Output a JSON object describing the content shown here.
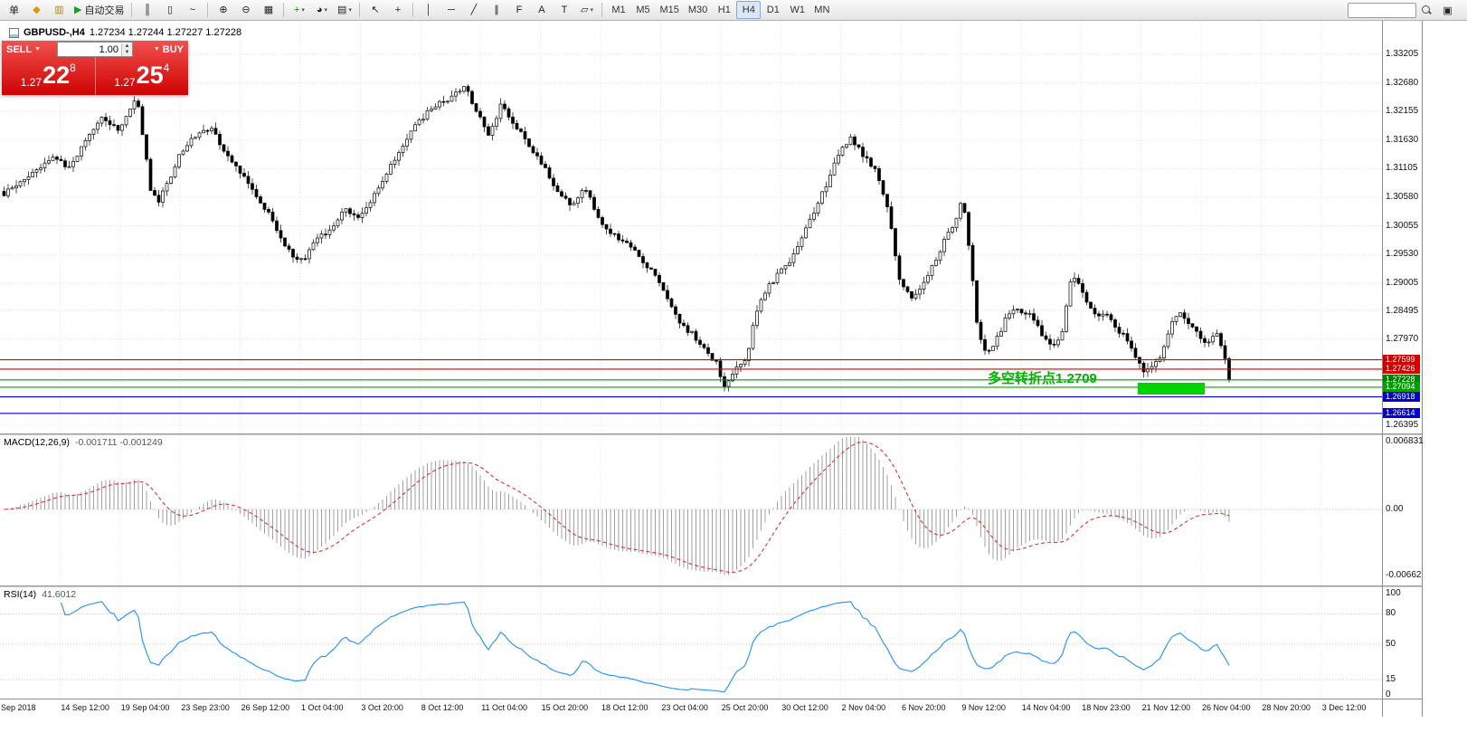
{
  "chart": {
    "symbol": "GBPUSD-,H4",
    "ohlc": "1.27234 1.27244 1.27227 1.27228"
  },
  "toolbar": {
    "buttons": [
      {
        "n": "new-order-button",
        "t": "单"
      },
      {
        "n": "history-center-icon",
        "g": "◆",
        "c": "#d89a00"
      },
      {
        "n": "market-watch-icon",
        "g": "▥",
        "c": "#b8860b"
      },
      {
        "n": "autotrading-button",
        "g": "▶",
        "gc": "#18a018",
        "t": "自动交易"
      },
      {
        "sep": true
      },
      {
        "n": "bar-chart-button",
        "g": "║"
      },
      {
        "n": "candlestick-chart-button",
        "g": "▯"
      },
      {
        "n": "line-chart-button",
        "g": "~"
      },
      {
        "sep": true
      },
      {
        "n": "zoom-in-button",
        "g": "⊕"
      },
      {
        "n": "zoom-out-button",
        "g": "⊖"
      },
      {
        "n": "tile-windows-button",
        "g": "▦"
      },
      {
        "sep": true
      },
      {
        "n": "new-chart-button",
        "g": "+",
        "gc": "#0a8f0a",
        "dd": true
      },
      {
        "n": "profiles-button",
        "g": "◕",
        "dd": true
      },
      {
        "n": "chart-settings-button",
        "g": "▤",
        "dd": true
      },
      {
        "sep": true
      },
      {
        "n": "cursor-tool",
        "g": "↖"
      },
      {
        "n": "crosshair-tool",
        "g": "+"
      },
      {
        "sep": true
      },
      {
        "n": "vertical-line-tool",
        "g": "│"
      },
      {
        "n": "horizontal-line-tool",
        "g": "─"
      },
      {
        "n": "trendline-tool",
        "g": "╱"
      },
      {
        "n": "equidistant-channel-tool",
        "g": "∥"
      },
      {
        "n": "fibonacci-tool",
        "g": "F"
      },
      {
        "n": "text-tool",
        "g": "A"
      },
      {
        "n": "label-tool",
        "g": "T"
      },
      {
        "n": "arrows-button",
        "g": "▱",
        "dd": true
      },
      {
        "sep": true
      }
    ],
    "timeframes": {
      "items": [
        "M1",
        "M5",
        "M15",
        "M30",
        "H1",
        "H4",
        "D1",
        "W1",
        "MN"
      ],
      "active": "H4"
    }
  },
  "trade_panel": {
    "sell_label": "SELL",
    "buy_label": "BUY",
    "volume": "1.00",
    "sell_price": {
      "prefix": "1.27",
      "big": "22",
      "pip": "8"
    },
    "buy_price": {
      "prefix": "1.27",
      "big": "25",
      "pip": "4"
    }
  },
  "annotation": {
    "text": "多空转折点1.2709",
    "color": "#00b400",
    "rect_color": "#00d300"
  },
  "hlines": [
    {
      "price": 1.27599,
      "color": "#e00000"
    },
    {
      "price": 1.27426,
      "color": "#e00000"
    },
    {
      "price": 1.27228,
      "color": "#009a00"
    },
    {
      "price": 1.27094,
      "color": "#00a800"
    },
    {
      "price": 1.26918,
      "color": "#0000cc"
    },
    {
      "price": 1.26614,
      "color": "#0000cc"
    }
  ],
  "price_scale": {
    "ticks": [
      {
        "label": "1.33205",
        "price": 1.33205
      },
      {
        "label": "1.32680",
        "price": 1.3268
      },
      {
        "label": "1.32155",
        "price": 1.32155
      },
      {
        "label": "1.31630",
        "price": 1.3163
      },
      {
        "label": "1.31105",
        "price": 1.31105
      },
      {
        "label": "1.30580",
        "price": 1.3058
      },
      {
        "label": "1.30055",
        "price": 1.30055
      },
      {
        "label": "1.29530",
        "price": 1.2953
      },
      {
        "label": "1.29005",
        "price": 1.29005
      },
      {
        "label": "1.28495",
        "price": 1.28495
      },
      {
        "label": "1.27970",
        "price": 1.2797
      },
      {
        "label": "1.26395",
        "price": 1.26395
      }
    ],
    "tags": [
      {
        "label": "1.27599",
        "price": 1.27599,
        "color": "#d40000"
      },
      {
        "label": "1.27426",
        "price": 1.27426,
        "color": "#d40000"
      },
      {
        "label": "1.27228",
        "price": 1.27228,
        "color": "#008000"
      },
      {
        "label": "1.27094",
        "price": 1.27094,
        "color": "#00a000"
      },
      {
        "label": "1.26918",
        "price": 1.26918,
        "color": "#0000c8"
      },
      {
        "label": "1.26614",
        "price": 1.26614,
        "color": "#0000c8"
      }
    ]
  },
  "macd": {
    "label": "MACD(12,26,9)",
    "value1": "-0.001711",
    "value2": "-0.001249",
    "histogram_color": "#a0a0a0",
    "signal_color": "#e03030",
    "scale": [
      {
        "label": "0.006831",
        "value": 0.006831
      },
      {
        "label": "0.00",
        "value": 0
      },
      {
        "label": "-0.00662",
        "value": -0.00662
      }
    ]
  },
  "rsi": {
    "label": "RSI(14)",
    "value": "41.6012",
    "line_color": "#1e90ff",
    "levels": [
      80,
      50,
      15
    ],
    "scale": [
      {
        "label": "100",
        "value": 100
      },
      {
        "label": "80",
        "value": 80
      },
      {
        "label": "50",
        "value": 50
      },
      {
        "label": "15",
        "value": 15
      },
      {
        "label": "0",
        "value": 0
      }
    ]
  },
  "time_axis": {
    "labels": [
      "Sep 2018",
      "14 Sep 12:00",
      "19 Sep 04:00",
      "23 Sep 23:00",
      "26 Sep 12:00",
      "1 Oct 04:00",
      "3 Oct 20:00",
      "8 Oct 12:00",
      "11 Oct 04:00",
      "15 Oct 20:00",
      "18 Oct 12:00",
      "23 Oct 04:00",
      "25 Oct 20:00",
      "30 Oct 12:00",
      "2 Nov 04:00",
      "6 Nov 20:00",
      "9 Nov 12:00",
      "14 Nov 04:00",
      "18 Nov 23:00",
      "21 Nov 12:00",
      "26 Nov 04:00",
      "28 Nov 20:00",
      "3 Dec 12:00"
    ]
  },
  "chart_data": {
    "type": "candlestick",
    "symbol": "GBPUSD",
    "timeframe": "H4",
    "candle_count": 302,
    "visible_price_range": [
      1.2638,
      1.3322
    ],
    "grid_prices": [
      1.33205,
      1.3268,
      1.32155,
      1.3163,
      1.31105,
      1.3058,
      1.30055,
      1.2953,
      1.29005,
      1.28495,
      1.2797,
      1.27445,
      1.2692,
      1.26395
    ],
    "anchors": [
      [
        0,
        1.306
      ],
      [
        28,
        1.3095
      ],
      [
        58,
        1.3135
      ],
      [
        76,
        1.3108
      ],
      [
        95,
        1.3168
      ],
      [
        112,
        1.3205
      ],
      [
        128,
        1.318
      ],
      [
        140,
        1.3215
      ],
      [
        150,
        1.3242
      ],
      [
        158,
        1.315
      ],
      [
        165,
        1.3075
      ],
      [
        172,
        1.3048
      ],
      [
        186,
        1.309
      ],
      [
        200,
        1.3146
      ],
      [
        214,
        1.317
      ],
      [
        233,
        1.3186
      ],
      [
        250,
        1.313
      ],
      [
        265,
        1.3105
      ],
      [
        282,
        1.3062
      ],
      [
        300,
        1.3015
      ],
      [
        318,
        1.2958
      ],
      [
        335,
        1.294
      ],
      [
        350,
        1.2988
      ],
      [
        365,
        1.2998
      ],
      [
        380,
        1.3038
      ],
      [
        395,
        1.3022
      ],
      [
        410,
        1.3055
      ],
      [
        425,
        1.3096
      ],
      [
        440,
        1.3145
      ],
      [
        455,
        1.3186
      ],
      [
        470,
        1.3212
      ],
      [
        485,
        1.323
      ],
      [
        500,
        1.3246
      ],
      [
        513,
        1.3258
      ],
      [
        525,
        1.322
      ],
      [
        538,
        1.3172
      ],
      [
        553,
        1.3228
      ],
      [
        568,
        1.3188
      ],
      [
        584,
        1.3155
      ],
      [
        600,
        1.3112
      ],
      [
        615,
        1.3072
      ],
      [
        630,
        1.304
      ],
      [
        644,
        1.3078
      ],
      [
        660,
        1.3022
      ],
      [
        675,
        1.299
      ],
      [
        692,
        1.2973
      ],
      [
        706,
        1.2946
      ],
      [
        720,
        1.2922
      ],
      [
        736,
        1.287
      ],
      [
        752,
        1.2822
      ],
      [
        764,
        1.2808
      ],
      [
        777,
        1.278
      ],
      [
        790,
        1.2756
      ],
      [
        800,
        1.2706
      ],
      [
        812,
        1.2742
      ],
      [
        824,
        1.2766
      ],
      [
        838,
        1.287
      ],
      [
        854,
        1.2906
      ],
      [
        870,
        1.2938
      ],
      [
        886,
        1.299
      ],
      [
        900,
        1.3038
      ],
      [
        914,
        1.3088
      ],
      [
        928,
        1.3146
      ],
      [
        940,
        1.3168
      ],
      [
        953,
        1.3132
      ],
      [
        966,
        1.3112
      ],
      [
        980,
        1.304
      ],
      [
        993,
        1.2908
      ],
      [
        1005,
        1.2872
      ],
      [
        1016,
        1.289
      ],
      [
        1026,
        1.2922
      ],
      [
        1036,
        1.2956
      ],
      [
        1046,
        1.2988
      ],
      [
        1056,
        1.3022
      ],
      [
        1063,
        1.306
      ],
      [
        1071,
        1.2955
      ],
      [
        1080,
        1.2808
      ],
      [
        1090,
        1.2772
      ],
      [
        1100,
        1.2798
      ],
      [
        1110,
        1.2832
      ],
      [
        1120,
        1.2856
      ],
      [
        1131,
        1.2848
      ],
      [
        1141,
        1.2838
      ],
      [
        1151,
        1.2806
      ],
      [
        1161,
        1.279
      ],
      [
        1172,
        1.2798
      ],
      [
        1184,
        1.2922
      ],
      [
        1194,
        1.2888
      ],
      [
        1204,
        1.2856
      ],
      [
        1214,
        1.2838
      ],
      [
        1224,
        1.2844
      ],
      [
        1234,
        1.2816
      ],
      [
        1244,
        1.28
      ],
      [
        1254,
        1.2766
      ],
      [
        1264,
        1.274
      ],
      [
        1274,
        1.2748
      ],
      [
        1284,
        1.2774
      ],
      [
        1294,
        1.2832
      ],
      [
        1304,
        1.2848
      ],
      [
        1314,
        1.282
      ],
      [
        1324,
        1.2806
      ],
      [
        1334,
        1.279
      ],
      [
        1344,
        1.2812
      ],
      [
        1354,
        1.2758
      ],
      [
        1365,
        1.27228
      ]
    ]
  }
}
